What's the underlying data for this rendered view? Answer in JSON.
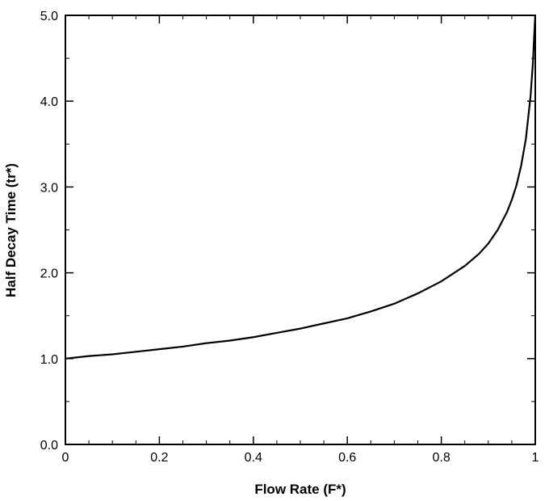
{
  "chart_data": {
    "type": "line",
    "title": "",
    "xlabel": "Flow Rate (F*)",
    "ylabel": "Half Decay Time (tr*)",
    "xlim": [
      0,
      1
    ],
    "ylim": [
      0,
      5
    ],
    "grid": false,
    "x_ticks": [
      {
        "value": 0,
        "label": "0"
      },
      {
        "value": 0.2,
        "label": "0.2"
      },
      {
        "value": 0.4,
        "label": "0.4"
      },
      {
        "value": 0.6,
        "label": "0.6"
      },
      {
        "value": 0.8,
        "label": "0.8"
      },
      {
        "value": 1,
        "label": "1"
      }
    ],
    "y_ticks": [
      {
        "value": 0,
        "label": "0.0"
      },
      {
        "value": 1,
        "label": "1.0"
      },
      {
        "value": 2,
        "label": "2.0"
      },
      {
        "value": 3,
        "label": "3.0"
      },
      {
        "value": 4,
        "label": "4.0"
      },
      {
        "value": 5,
        "label": "5.0"
      }
    ],
    "series": [
      {
        "color": "#000000",
        "x": [
          0,
          0.05,
          0.1,
          0.15,
          0.2,
          0.25,
          0.3,
          0.35,
          0.4,
          0.45,
          0.5,
          0.55,
          0.6,
          0.65,
          0.7,
          0.75,
          0.8,
          0.85,
          0.88,
          0.9,
          0.92,
          0.94,
          0.95,
          0.96,
          0.97,
          0.98,
          0.99,
          0.995,
          0.998,
          1.0
        ],
        "y": [
          1.0,
          1.03,
          1.05,
          1.08,
          1.11,
          1.14,
          1.18,
          1.21,
          1.25,
          1.3,
          1.35,
          1.41,
          1.47,
          1.55,
          1.64,
          1.76,
          1.9,
          2.08,
          2.22,
          2.34,
          2.5,
          2.71,
          2.85,
          3.02,
          3.25,
          3.56,
          4.06,
          4.45,
          4.8,
          5.0
        ]
      }
    ]
  }
}
